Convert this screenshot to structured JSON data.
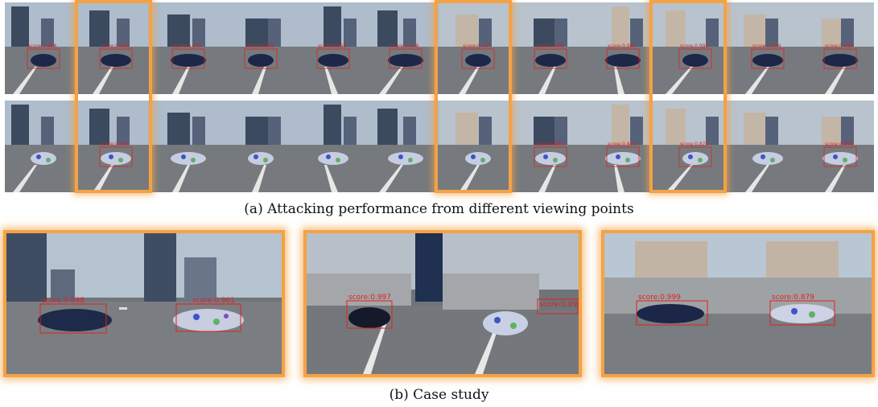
{
  "figure": {
    "caption_a": "(a) Attacking performance from different viewing points",
    "caption_b": "(b) Case study",
    "highlight_color": "#f4a245",
    "box_color": "#e02020"
  },
  "viewing_points": {
    "top_row": {
      "kind": "clean",
      "scores": [
        "score:0.998",
        "score:0.998",
        "score:0.999",
        "score:0.999",
        "score:0.998",
        "score:0.998",
        "score:0.997",
        "score:0.999",
        "score:0.999",
        "score:0.999",
        "score:0.999",
        "score:0.999"
      ]
    },
    "bottom_row": {
      "kind": "adversarial",
      "scores": [
        "",
        "score:0.901",
        "",
        "",
        "",
        "",
        "",
        "score:0.690",
        "score:0.879",
        "score:0.879",
        "",
        "score:0.690"
      ]
    },
    "highlighted_columns": [
      1,
      6,
      10
    ]
  },
  "case_study": [
    {
      "left_score": "score:0.998",
      "right_score": "score:0.901"
    },
    {
      "left_score": "score:0.997",
      "right_score": "score:0.09"
    },
    {
      "left_score": "score:0.999",
      "right_score": "score:0.879"
    }
  ]
}
